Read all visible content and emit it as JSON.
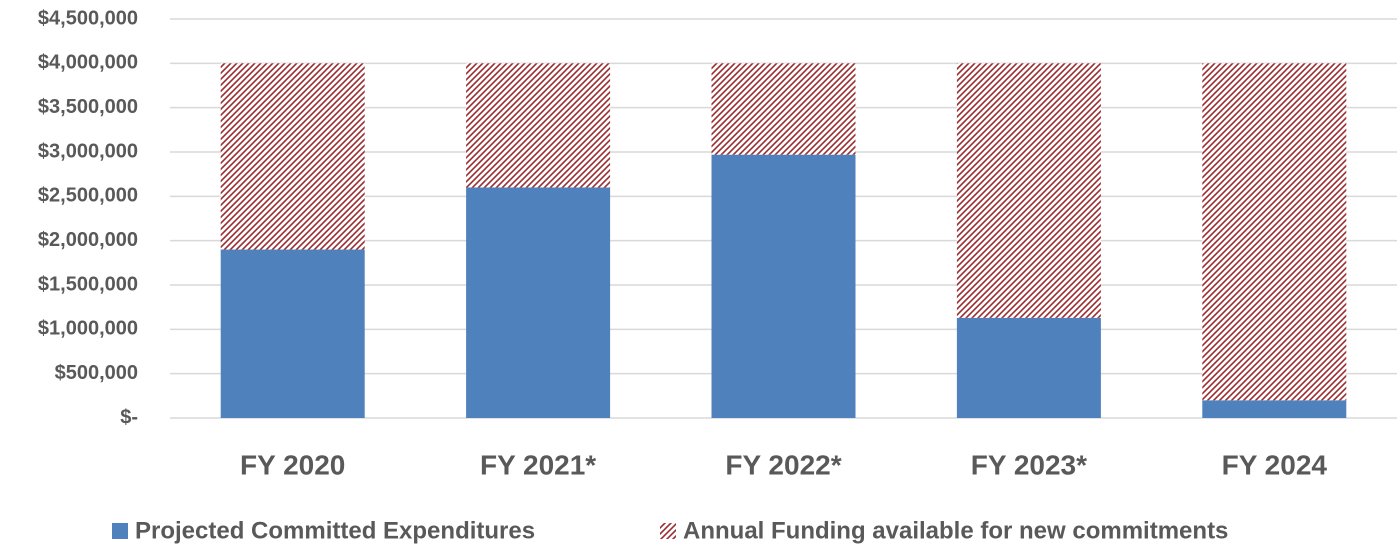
{
  "chart_data": {
    "type": "stacked_bar",
    "categories": [
      "FY 2020",
      "FY 2021*",
      "FY 2022*",
      "FY 2023*",
      "FY 2024"
    ],
    "series": [
      {
        "name": "Projected Committed Expenditures",
        "color": "#4f81bd",
        "values": [
          1900000,
          2600000,
          2970000,
          1130000,
          200000
        ]
      },
      {
        "name": "Annual Funding available for new commitments",
        "color": "#9b2d30",
        "pattern": "hatch",
        "values": [
          2100000,
          1400000,
          1030000,
          2870000,
          3800000
        ]
      }
    ],
    "ylim": [
      0,
      4500000
    ],
    "yticks": [
      {
        "value": 0,
        "label": "$-"
      },
      {
        "value": 500000,
        "label": "$500,000"
      },
      {
        "value": 1000000,
        "label": "$1,000,000"
      },
      {
        "value": 1500000,
        "label": "$1,500,000"
      },
      {
        "value": 2000000,
        "label": "$2,000,000"
      },
      {
        "value": 2500000,
        "label": "$2,500,000"
      },
      {
        "value": 3000000,
        "label": "$3,000,000"
      },
      {
        "value": 3500000,
        "label": "$3,500,000"
      },
      {
        "value": 4000000,
        "label": "$4,000,000"
      },
      {
        "value": 4500000,
        "label": "$4,500,000"
      }
    ],
    "grid": true,
    "legend": "bottom"
  }
}
